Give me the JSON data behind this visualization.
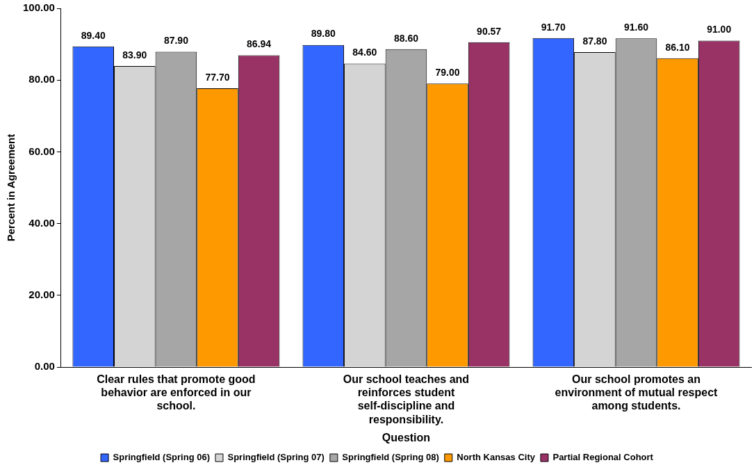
{
  "chart_data": {
    "type": "bar",
    "xlabel": "Question",
    "ylabel": "Percent in Agreement",
    "categories": [
      "Clear rules that promote good behavior are enforced in our school.",
      "Our school teaches and reinforces student self-discipline and responsibility.",
      "Our school promotes an environment of mutual respect among students."
    ],
    "series": [
      {
        "name": "Springfield (Spring 06)",
        "color": "#3366ff",
        "values": [
          89.4,
          89.8,
          91.7
        ],
        "value_labels": [
          "89.40",
          "89.80",
          "91.70"
        ]
      },
      {
        "name": "Springfield (Spring 07)",
        "color": "#d4d4d4",
        "values": [
          83.9,
          84.6,
          87.8
        ],
        "value_labels": [
          "83.90",
          "84.60",
          "87.80"
        ]
      },
      {
        "name": "Springfield (Spring 08)",
        "color": "#a6a6a6",
        "values": [
          87.9,
          88.6,
          91.6
        ],
        "value_labels": [
          "87.90",
          "88.60",
          "91.60"
        ]
      },
      {
        "name": "North Kansas City",
        "color": "#ff9900",
        "values": [
          77.7,
          79.0,
          86.1
        ],
        "value_labels": [
          "77.70",
          "79.00",
          "86.10"
        ]
      },
      {
        "name": "Partial Regional Cohort",
        "color": "#993366",
        "values": [
          86.94,
          90.57,
          91.0
        ],
        "value_labels": [
          "86.94",
          "90.57",
          "91.00"
        ]
      }
    ],
    "ylim": [
      0,
      100
    ],
    "yticks": [
      {
        "value": 0,
        "label": "0.00"
      },
      {
        "value": 20,
        "label": "20.00"
      },
      {
        "value": 40,
        "label": "40.00"
      },
      {
        "value": 60,
        "label": "60.00"
      },
      {
        "value": 80,
        "label": "80.00"
      },
      {
        "value": 100,
        "label": "100.00"
      }
    ],
    "grid": false,
    "legend": "bottom"
  }
}
